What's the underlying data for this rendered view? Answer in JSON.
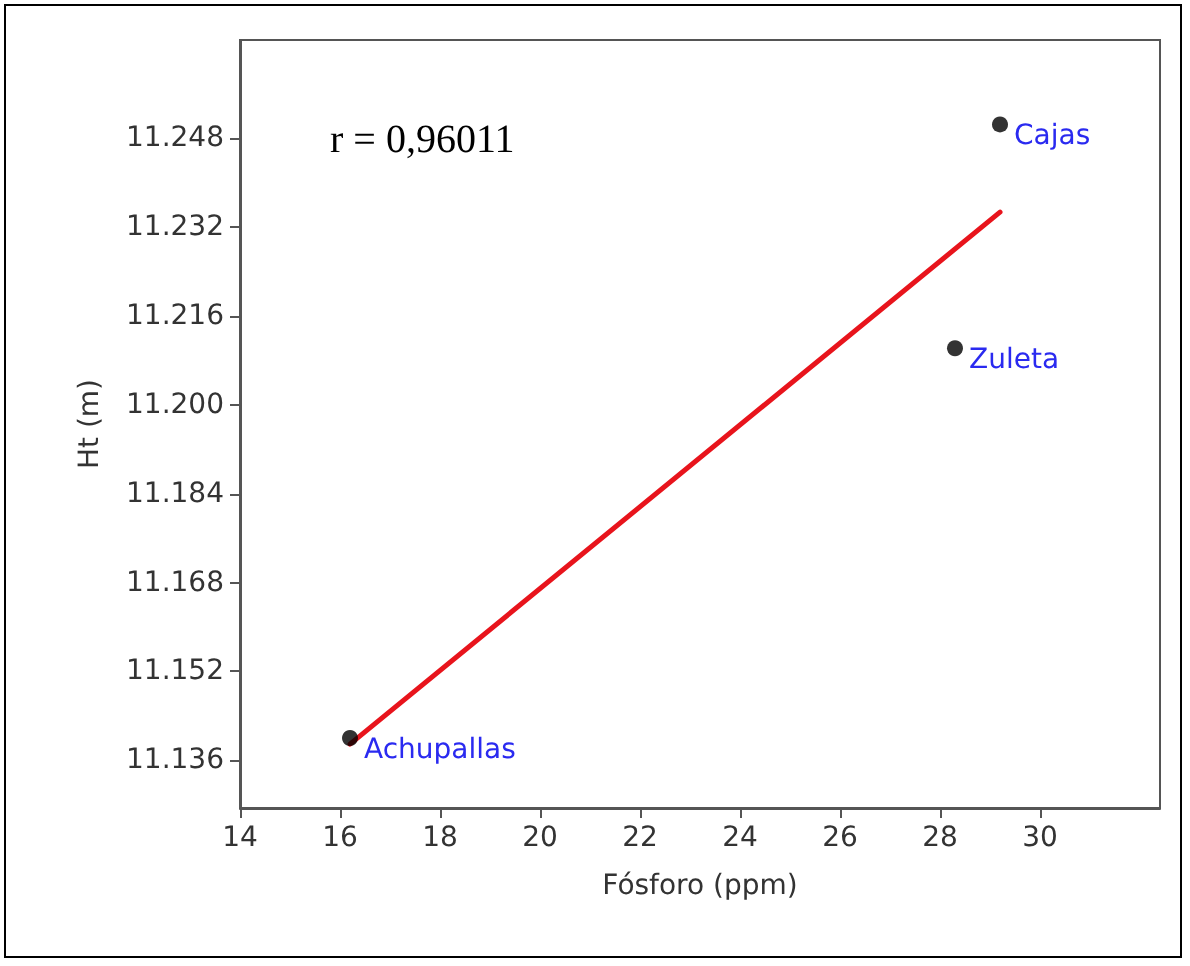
{
  "chart_data": {
    "type": "scatter",
    "xlabel": "Fósforo (ppm)",
    "ylabel": "Ht (m)",
    "xlim": [
      14,
      32.4
    ],
    "xticks": [
      14,
      16,
      18,
      20,
      22,
      24,
      26,
      28,
      30
    ],
    "ylim": [
      11.1274,
      11.2657
    ],
    "yticks": [
      {
        "value": 11.136,
        "label": "11.136"
      },
      {
        "value": 11.152,
        "label": "11.152"
      },
      {
        "value": 11.168,
        "label": "11.168"
      },
      {
        "value": 11.184,
        "label": "11.184"
      },
      {
        "value": 11.2,
        "label": "11.200"
      },
      {
        "value": 11.216,
        "label": "11.216"
      },
      {
        "value": 11.232,
        "label": "11.232"
      },
      {
        "value": 11.248,
        "label": "11.248"
      }
    ],
    "grid": false,
    "series": [
      {
        "color": "#000000",
        "marker": "circle",
        "x": [
          16.2,
          29.2,
          28.3
        ],
        "values": [
          11.14,
          11.2505,
          11.2102
        ]
      },
      {
        "type": "line",
        "color": "#e8141c",
        "marker": "none",
        "line_style": "solid",
        "x": [
          16.2,
          29.2
        ],
        "values": [
          11.1389,
          11.2347
        ]
      }
    ],
    "annotations": [
      "r = 0,96011",
      {
        "text": "Achupallas",
        "x": 16.2,
        "y": 11.14
      },
      {
        "text": "Cajas",
        "x": 29.2,
        "y": 11.2505
      },
      {
        "text": "Zuleta",
        "x": 28.3,
        "y": 11.2102
      }
    ]
  }
}
